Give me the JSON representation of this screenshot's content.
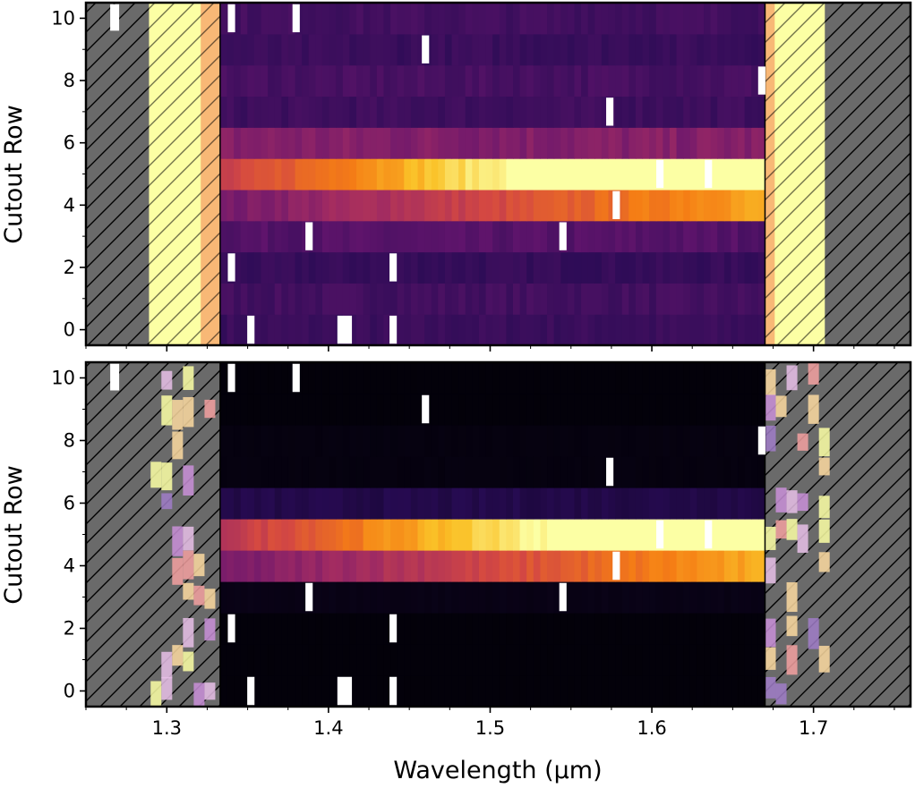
{
  "chart_data": [
    {
      "type": "heatmap",
      "panel": "top",
      "title": "",
      "xlabel": "",
      "ylabel": "Cutout Row",
      "xlim": [
        1.25,
        1.76
      ],
      "ylim": [
        -0.5,
        10.5
      ],
      "yticks": [
        "0",
        "2",
        "4",
        "6",
        "8",
        "10"
      ],
      "xticks": [
        "1.3",
        "1.4",
        "1.5",
        "1.6",
        "1.7"
      ],
      "colormap": "inferno",
      "hatched_masked_regions_um": [
        [
          1.25,
          1.289
        ],
        [
          1.707,
          1.76
        ]
      ],
      "hatched_excluded_regions_um": [
        [
          1.289,
          1.333
        ],
        [
          1.67,
          1.707
        ]
      ],
      "valid_range_um": [
        1.333,
        1.67
      ],
      "row_levels_normalized": [
        0.16,
        0.18,
        0.15,
        0.22,
        0.58,
        0.95,
        0.33,
        0.17,
        0.19,
        0.16,
        0.18
      ],
      "bad_pixels": [
        {
          "row": 10,
          "wavelength_um": 1.34
        },
        {
          "row": 10,
          "wavelength_um": 1.38
        },
        {
          "row": 9,
          "wavelength_um": 1.46
        },
        {
          "row": 7,
          "wavelength_um": 1.574
        },
        {
          "row": 8,
          "wavelength_um": 1.668
        },
        {
          "row": 5,
          "wavelength_um": 1.605
        },
        {
          "row": 5,
          "wavelength_um": 1.635
        },
        {
          "row": 4,
          "wavelength_um": 1.578
        },
        {
          "row": 3,
          "wavelength_um": 1.388
        },
        {
          "row": 3,
          "wavelength_um": 1.545
        },
        {
          "row": 2,
          "wavelength_um": 1.34
        },
        {
          "row": 2,
          "wavelength_um": 1.44
        },
        {
          "row": 0,
          "wavelength_um": 1.352
        },
        {
          "row": 0,
          "wavelength_um": 1.41
        },
        {
          "row": 0,
          "wavelength_um": 1.44
        }
      ]
    },
    {
      "type": "heatmap",
      "panel": "bottom",
      "title": "",
      "xlabel": "Wavelength (μm)",
      "ylabel": "Cutout Row",
      "xlim": [
        1.25,
        1.76
      ],
      "ylim": [
        -0.5,
        10.5
      ],
      "yticks": [
        "0",
        "2",
        "4",
        "6",
        "8",
        "10"
      ],
      "xticks": [
        "1.3",
        "1.4",
        "1.5",
        "1.6",
        "1.7"
      ],
      "colormap": "inferno",
      "hatched_masked_regions_um": [
        [
          1.25,
          1.333
        ],
        [
          1.67,
          1.76
        ]
      ],
      "valid_range_um": [
        1.333,
        1.67
      ],
      "row_levels_normalized": [
        0.01,
        0.01,
        0.01,
        0.03,
        0.58,
        0.9,
        0.12,
        0.02,
        0.02,
        0.01,
        0.01
      ],
      "bad_pixels": [
        {
          "row": 10,
          "wavelength_um": 1.34
        },
        {
          "row": 10,
          "wavelength_um": 1.38
        },
        {
          "row": 9,
          "wavelength_um": 1.46
        },
        {
          "row": 7,
          "wavelength_um": 1.574
        },
        {
          "row": 8,
          "wavelength_um": 1.668
        },
        {
          "row": 5,
          "wavelength_um": 1.605
        },
        {
          "row": 5,
          "wavelength_um": 1.635
        },
        {
          "row": 4,
          "wavelength_um": 1.578
        },
        {
          "row": 3,
          "wavelength_um": 1.388
        },
        {
          "row": 3,
          "wavelength_um": 1.545
        },
        {
          "row": 2,
          "wavelength_um": 1.34
        },
        {
          "row": 2,
          "wavelength_um": 1.44
        },
        {
          "row": 0,
          "wavelength_um": 1.352
        },
        {
          "row": 0,
          "wavelength_um": 1.41
        },
        {
          "row": 0,
          "wavelength_um": 1.44
        }
      ]
    }
  ]
}
